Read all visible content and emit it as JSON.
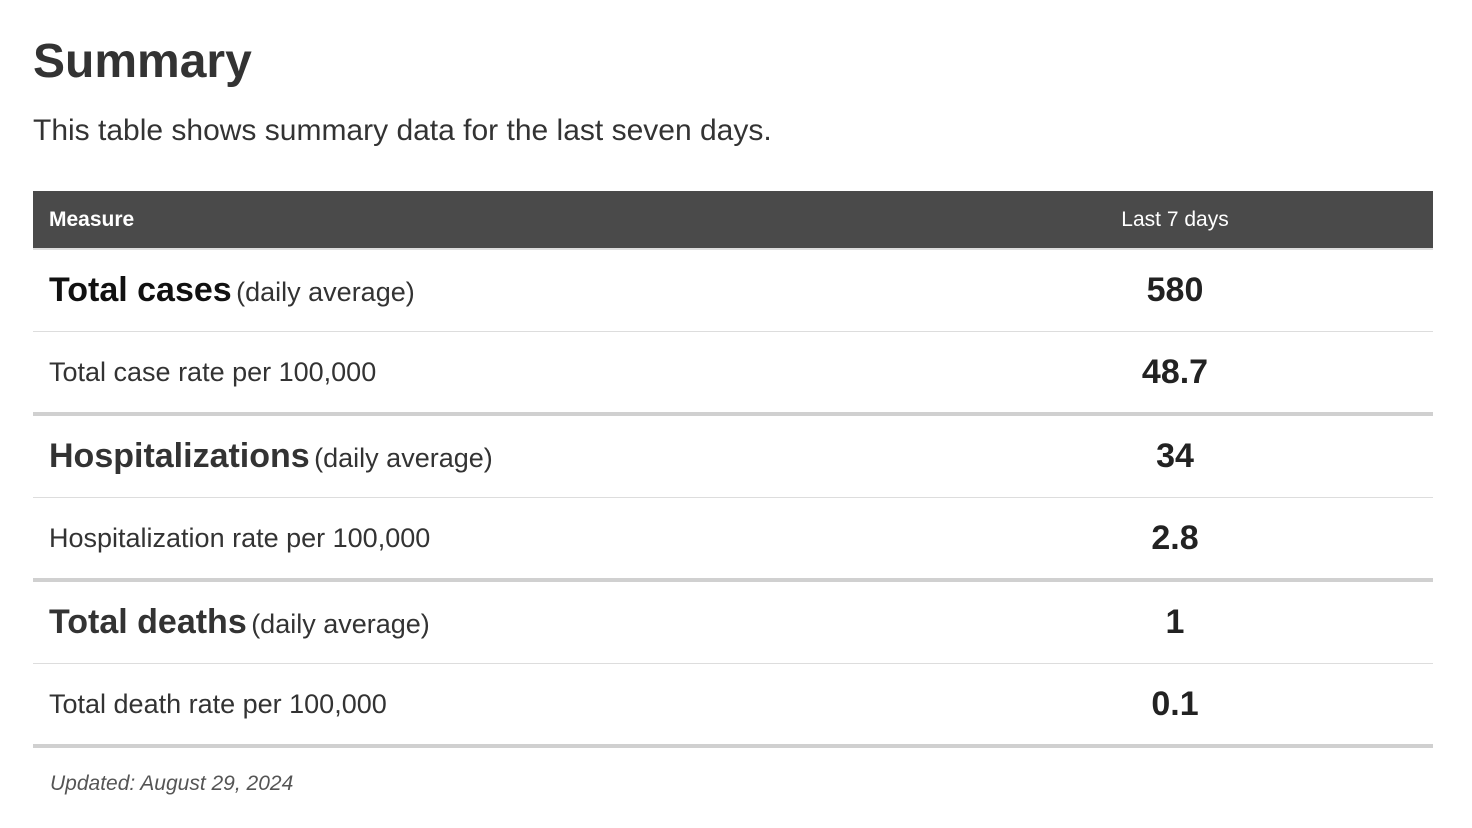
{
  "header": {
    "title": "Summary",
    "description": "This table shows summary data for the last seven days."
  },
  "table": {
    "columns": [
      "Measure",
      "Last 7 days"
    ],
    "groups": [
      {
        "label": "Total cases",
        "qualifier": "(daily average)",
        "value": 580,
        "rate_label": "Total case rate per 100,000",
        "rate_value": 48.7
      },
      {
        "label": "Hospitalizations",
        "qualifier": "(daily average)",
        "value": 34,
        "rate_label": "Hospitalization rate per 100,000",
        "rate_value": 2.8
      },
      {
        "label": "Total deaths",
        "qualifier": "(daily average)",
        "value": 1,
        "rate_label": "Total death rate per 100,000",
        "rate_value": 0.1
      }
    ]
  },
  "footer": {
    "updated": "Updated: August 29, 2024"
  }
}
